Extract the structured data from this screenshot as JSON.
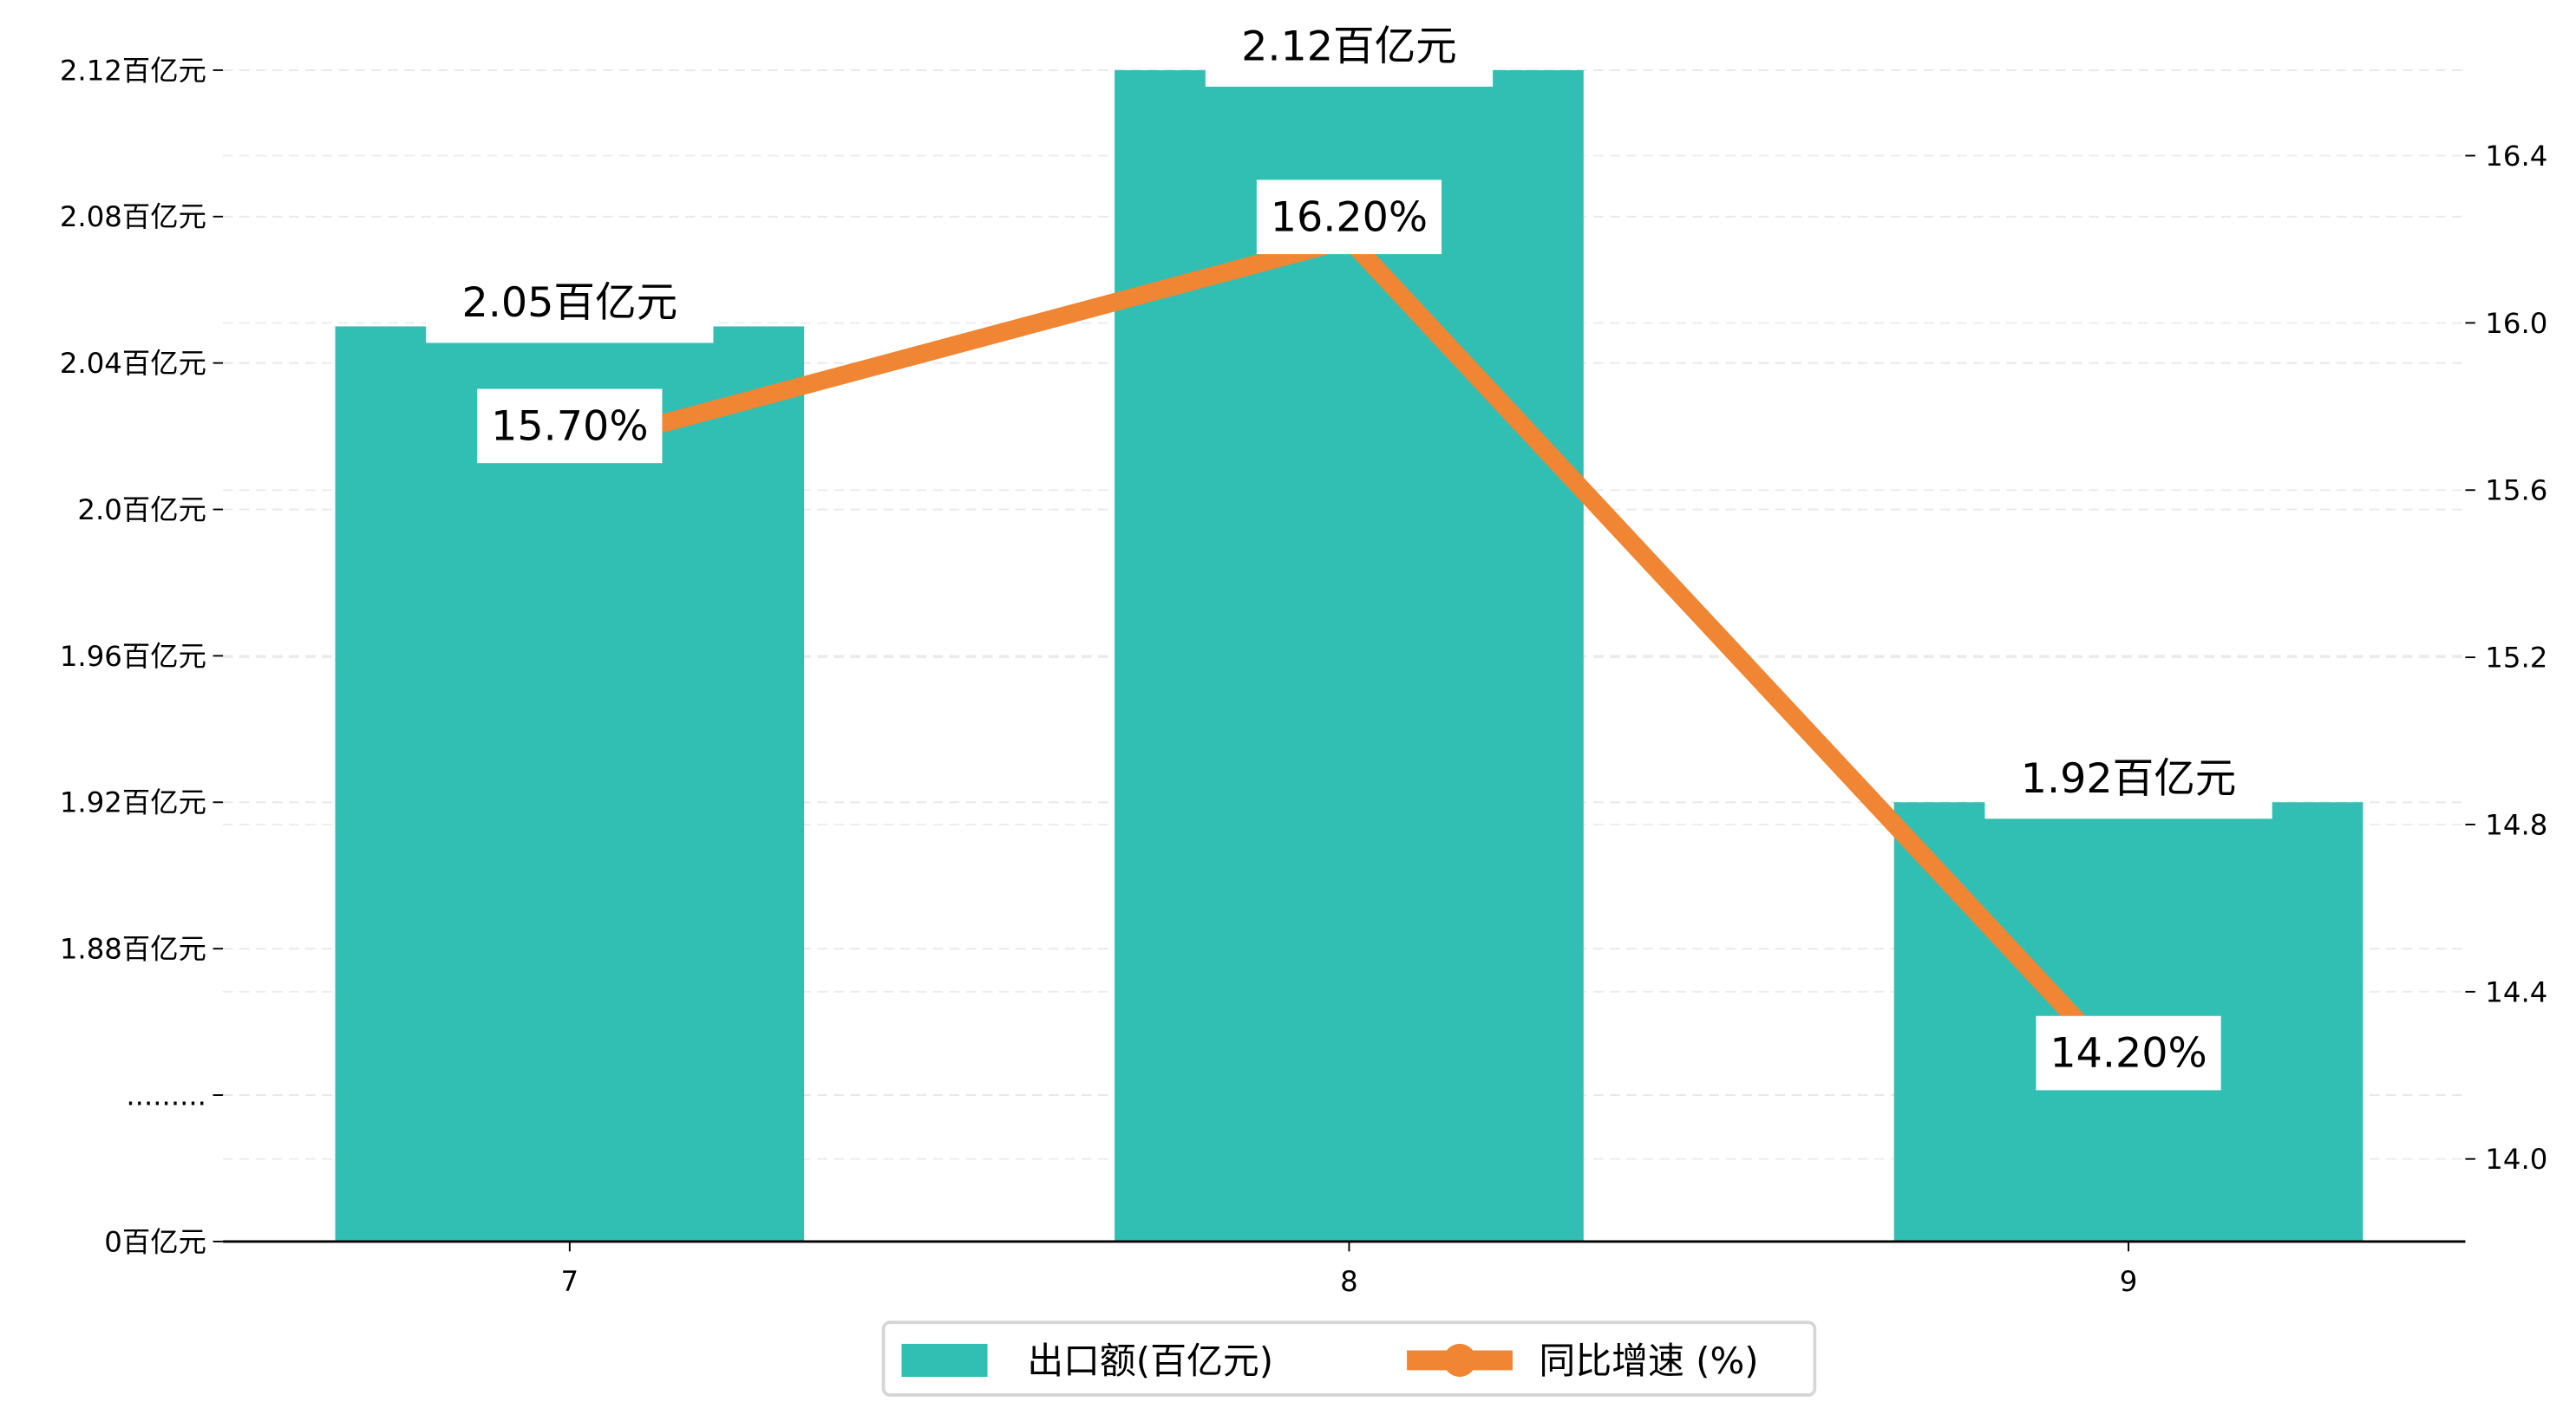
{
  "chart_data": {
    "type": "bar+line",
    "categories": [
      "7",
      "8",
      "9"
    ],
    "series": [
      {
        "name": "出口额(百亿元)",
        "type": "bar",
        "axis": "left",
        "values": [
          2.05,
          2.12,
          1.92
        ],
        "labels": [
          "2.05百亿元",
          "2.12百亿元",
          "1.92百亿元"
        ],
        "color": "#31bfb3"
      },
      {
        "name": "同比增速 (%)",
        "type": "line",
        "axis": "right",
        "values": [
          15.7,
          16.2,
          14.2
        ],
        "labels": [
          "15.70%",
          "16.20%",
          "14.20%"
        ],
        "color": "#f08533"
      }
    ],
    "left_axis": {
      "broken": true,
      "ticks": [
        {
          "value": 0,
          "label": "0百亿元"
        },
        {
          "value": null,
          "label": "........."
        },
        {
          "value": 1.88,
          "label": "1.88百亿元"
        },
        {
          "value": 1.92,
          "label": "1.92百亿元"
        },
        {
          "value": 1.96,
          "label": "1.96百亿元"
        },
        {
          "value": 2.0,
          "label": "2.0百亿元"
        },
        {
          "value": 2.04,
          "label": "2.04百亿元"
        },
        {
          "value": 2.08,
          "label": "2.08百亿元"
        },
        {
          "value": 2.12,
          "label": "2.12百亿元"
        }
      ]
    },
    "right_axis": {
      "ticks": [
        "14.0",
        "14.4",
        "14.8",
        "15.2",
        "15.6",
        "16.0",
        "16.4"
      ],
      "range": [
        13.8,
        16.6
      ]
    },
    "grid": true,
    "legend": {
      "placement": "bottom-center",
      "entries": [
        "出口额(百亿元)",
        "同比增速 (%)"
      ]
    }
  }
}
